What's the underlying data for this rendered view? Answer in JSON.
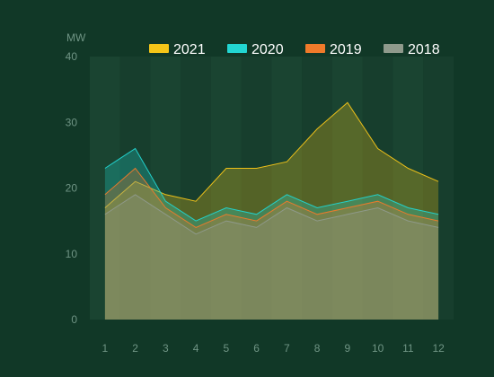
{
  "chart_data": {
    "type": "area",
    "title": "",
    "xlabel": "",
    "ylabel": "MW",
    "x": [
      "1",
      "2",
      "3",
      "4",
      "5",
      "6",
      "7",
      "8",
      "9",
      "10",
      "11",
      "12"
    ],
    "ylim": [
      0,
      40
    ],
    "yticks": [
      "0",
      "10",
      "20",
      "30",
      "40"
    ],
    "grid": false,
    "legend_position": "top",
    "background_color": "#113827",
    "series": [
      {
        "name": "2021",
        "color": "#f5c518",
        "values": [
          17,
          21,
          19,
          18,
          23,
          23,
          24,
          29,
          33,
          26,
          23,
          21
        ]
      },
      {
        "name": "2020",
        "color": "#22d6d2",
        "values": [
          23,
          26,
          18,
          15,
          17,
          16,
          19,
          17,
          18,
          19,
          17,
          16
        ]
      },
      {
        "name": "2019",
        "color": "#f07a2a",
        "values": [
          19,
          23,
          17,
          14,
          16,
          15,
          18,
          16,
          17,
          18,
          16,
          15
        ]
      },
      {
        "name": "2018",
        "color": "#8f9a8c",
        "values": [
          16,
          19,
          16,
          13,
          15,
          14,
          17,
          15,
          16,
          17,
          15,
          14
        ]
      }
    ]
  }
}
